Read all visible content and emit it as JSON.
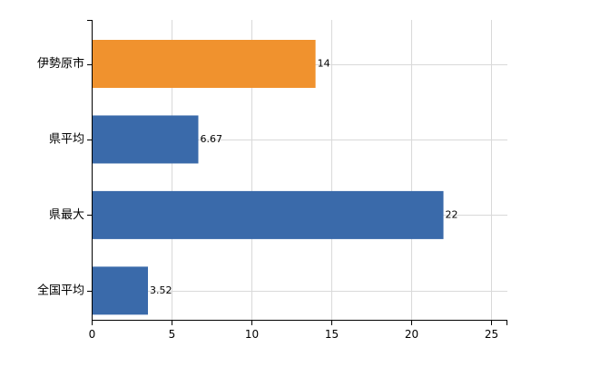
{
  "chart_data": {
    "type": "bar",
    "orientation": "horizontal",
    "categories": [
      "伊勢原市",
      "県平均",
      "県最大",
      "全国平均"
    ],
    "values": [
      14,
      6.67,
      22,
      3.52
    ],
    "value_labels": [
      "14",
      "6.67",
      "22",
      "3.52"
    ],
    "colors": [
      "#f0922e",
      "#3a6aaa",
      "#3a6aaa",
      "#3a6aaa"
    ],
    "xlim": [
      0,
      26
    ],
    "xticks": [
      0,
      5,
      10,
      15,
      20,
      25
    ],
    "grid": true,
    "title": "",
    "xlabel": "",
    "ylabel": ""
  }
}
